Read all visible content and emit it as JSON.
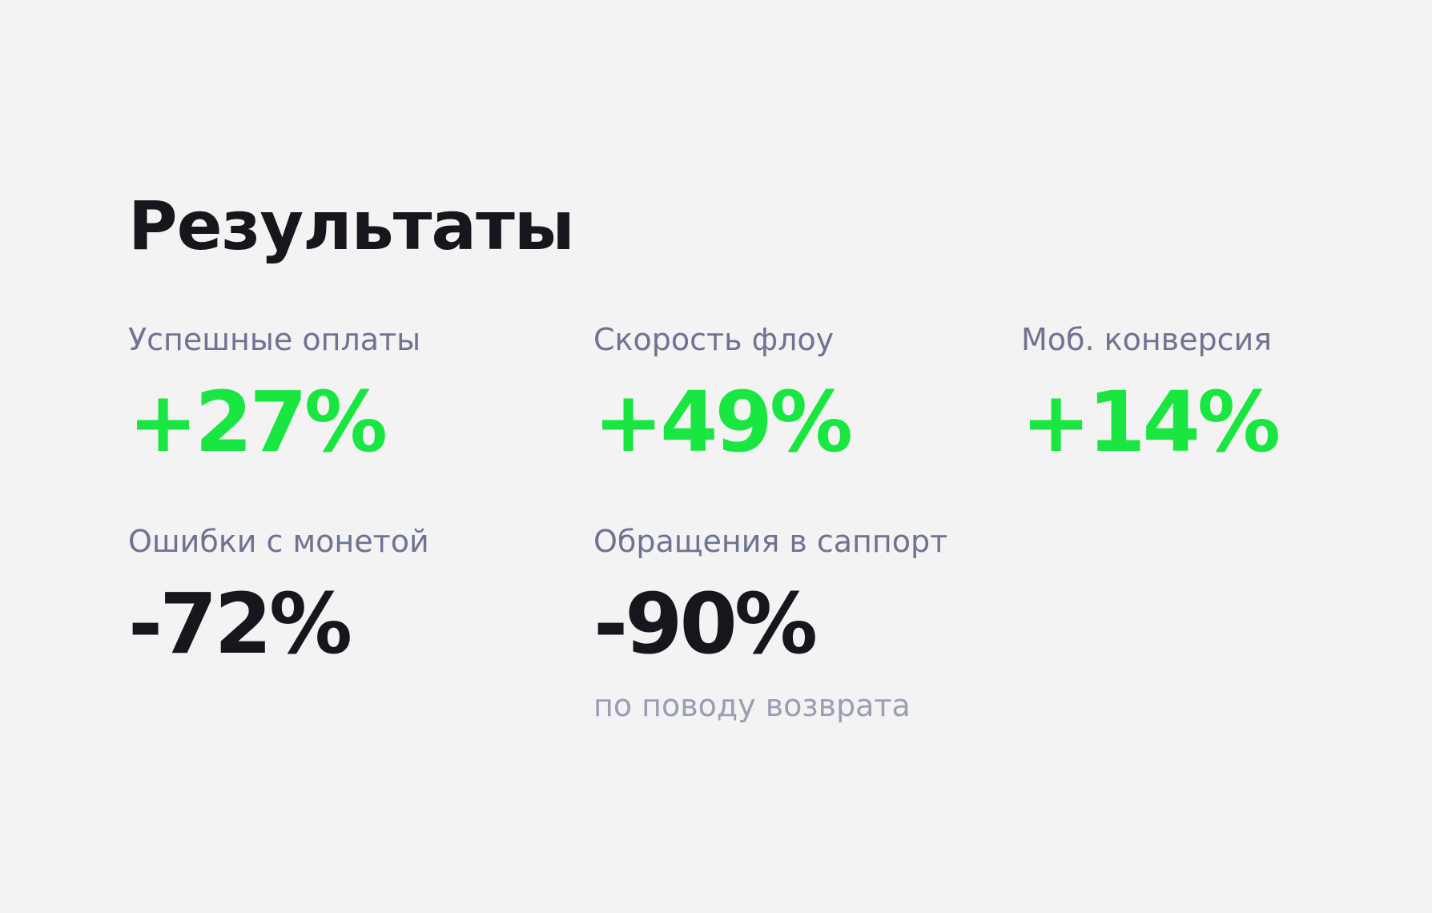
{
  "header": {
    "title": "Результаты"
  },
  "metrics": [
    {
      "label": "Успешные оплаты",
      "value": "+27%"
    },
    {
      "label": "Скорость флоу",
      "value": "+49%"
    },
    {
      "label": "Моб. конверсия",
      "value": "+14%"
    },
    {
      "label": "Ошибки с монетой",
      "value": "-72%"
    },
    {
      "label": "Обращения в саппорт",
      "value": "-90%",
      "note": "по поводу возврата"
    }
  ]
}
